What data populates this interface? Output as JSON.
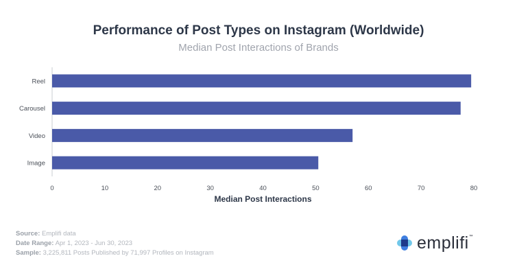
{
  "chart_data": {
    "type": "bar",
    "orientation": "horizontal",
    "title": "Performance of Post Types on Instagram (Worldwide)",
    "subtitle": "Median Post Interactions of Brands",
    "categories": [
      "Reel",
      "Carousel",
      "Video",
      "Image"
    ],
    "values": [
      79.5,
      77.5,
      57,
      50.5
    ],
    "xlabel": "Median Post Interactions",
    "ylabel": "",
    "xlim": [
      0,
      80
    ],
    "xticks": [
      0,
      10,
      20,
      30,
      40,
      50,
      60,
      70,
      80
    ],
    "bar_color": "#4a5aa8",
    "grid": false
  },
  "footer": {
    "source_label": "Source:",
    "source_value": "Emplifi data",
    "date_label": "Date Range:",
    "date_value": "Apr 1, 2023 - Jun 30, 2023",
    "sample_label": "Sample:",
    "sample_value": "3,225,811 Posts Published by 71,997 Profiles on Instagram"
  },
  "logo": {
    "word": "emplifi",
    "tm": "™",
    "icon": "emplifi-logo-icon",
    "colors": [
      "#3f7fe0",
      "#1e3a8a",
      "#62c2e8"
    ]
  }
}
